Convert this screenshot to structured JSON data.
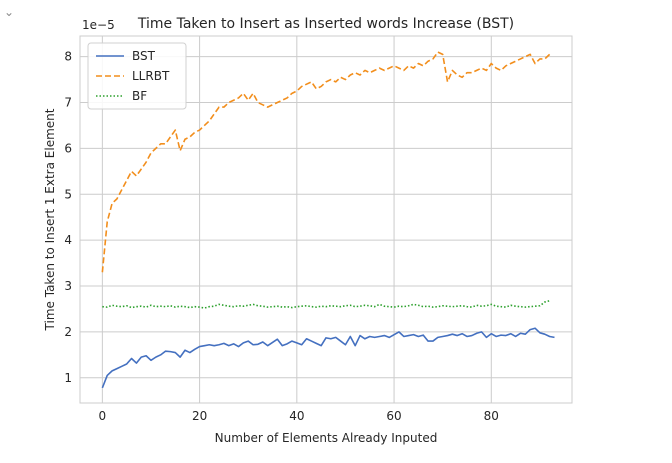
{
  "cell": {
    "collapse_icon": "chevron-down-icon",
    "collapse_glyph": "⌄"
  },
  "chart_data": {
    "type": "line",
    "title": "Time Taken to Insert as Inserted words Increase (BST)",
    "xlabel": "Number of Elements Already Inputed",
    "ylabel": "Time Taken to Insert 1 Extra Element",
    "offset_label": "1e−5",
    "xlim": [
      -4.6,
      96.6
    ],
    "ylim": [
      0.45,
      8.45
    ],
    "x_ticks": [
      0,
      20,
      40,
      60,
      80
    ],
    "y_ticks": [
      1,
      2,
      3,
      4,
      5,
      6,
      7,
      8
    ],
    "grid": true,
    "legend_position": "top-left",
    "series": [
      {
        "name": "BST",
        "color": "#4470c0",
        "style": "solid",
        "values": [
          0.78,
          1.05,
          1.15,
          1.2,
          1.25,
          1.3,
          1.42,
          1.32,
          1.45,
          1.48,
          1.38,
          1.45,
          1.5,
          1.58,
          1.57,
          1.55,
          1.45,
          1.6,
          1.55,
          1.62,
          1.68,
          1.7,
          1.72,
          1.7,
          1.72,
          1.75,
          1.7,
          1.74,
          1.68,
          1.76,
          1.8,
          1.72,
          1.73,
          1.78,
          1.7,
          1.77,
          1.84,
          1.7,
          1.74,
          1.8,
          1.76,
          1.72,
          1.85,
          1.8,
          1.75,
          1.7,
          1.87,
          1.85,
          1.88,
          1.8,
          1.72,
          1.9,
          1.7,
          1.92,
          1.85,
          1.9,
          1.88,
          1.9,
          1.92,
          1.88,
          1.94,
          2.0,
          1.9,
          1.92,
          1.94,
          1.9,
          1.93,
          1.8,
          1.8,
          1.88,
          1.9,
          1.92,
          1.95,
          1.92,
          1.96,
          1.9,
          1.92,
          1.97,
          2.0,
          1.88,
          1.96,
          1.9,
          1.93,
          1.92,
          1.96,
          1.9,
          1.97,
          1.95,
          2.05,
          2.08,
          1.98,
          1.95,
          1.9,
          1.88
        ]
      },
      {
        "name": "LLRBT",
        "color": "#f28e1c",
        "style": "dashed",
        "values": [
          3.3,
          4.4,
          4.8,
          4.9,
          5.1,
          5.3,
          5.5,
          5.4,
          5.55,
          5.7,
          5.9,
          6.0,
          6.1,
          6.1,
          6.25,
          6.4,
          5.95,
          6.2,
          6.25,
          6.35,
          6.4,
          6.5,
          6.6,
          6.75,
          6.9,
          6.9,
          7.0,
          7.05,
          7.1,
          7.2,
          7.05,
          7.2,
          7.0,
          6.95,
          6.9,
          6.95,
          7.0,
          7.05,
          7.1,
          7.2,
          7.25,
          7.35,
          7.4,
          7.45,
          7.3,
          7.35,
          7.45,
          7.5,
          7.45,
          7.55,
          7.5,
          7.6,
          7.65,
          7.6,
          7.7,
          7.65,
          7.7,
          7.75,
          7.7,
          7.75,
          7.8,
          7.75,
          7.7,
          7.8,
          7.75,
          7.85,
          7.8,
          7.9,
          7.95,
          8.1,
          8.05,
          7.45,
          7.7,
          7.6,
          7.55,
          7.65,
          7.65,
          7.7,
          7.75,
          7.7,
          7.85,
          7.75,
          7.7,
          7.8,
          7.85,
          7.9,
          7.95,
          8.0,
          8.05,
          7.85,
          7.95,
          7.95,
          8.05
        ]
      },
      {
        "name": "BF",
        "color": "#2ca02c",
        "style": "dotted",
        "values": [
          2.55,
          2.54,
          2.58,
          2.56,
          2.55,
          2.57,
          2.53,
          2.55,
          2.56,
          2.54,
          2.58,
          2.55,
          2.56,
          2.55,
          2.57,
          2.54,
          2.56,
          2.55,
          2.53,
          2.55,
          2.54,
          2.52,
          2.55,
          2.56,
          2.6,
          2.58,
          2.56,
          2.55,
          2.57,
          2.56,
          2.58,
          2.6,
          2.57,
          2.56,
          2.54,
          2.55,
          2.56,
          2.54,
          2.55,
          2.53,
          2.55,
          2.56,
          2.57,
          2.55,
          2.54,
          2.56,
          2.55,
          2.57,
          2.56,
          2.55,
          2.57,
          2.58,
          2.55,
          2.56,
          2.58,
          2.57,
          2.55,
          2.6,
          2.56,
          2.55,
          2.54,
          2.56,
          2.55,
          2.57,
          2.6,
          2.58,
          2.55,
          2.56,
          2.54,
          2.55,
          2.57,
          2.56,
          2.55,
          2.56,
          2.57,
          2.55,
          2.54,
          2.58,
          2.56,
          2.57,
          2.6,
          2.56,
          2.55,
          2.54,
          2.58,
          2.56,
          2.55,
          2.54,
          2.55,
          2.56,
          2.57,
          2.65,
          2.68
        ]
      }
    ]
  }
}
